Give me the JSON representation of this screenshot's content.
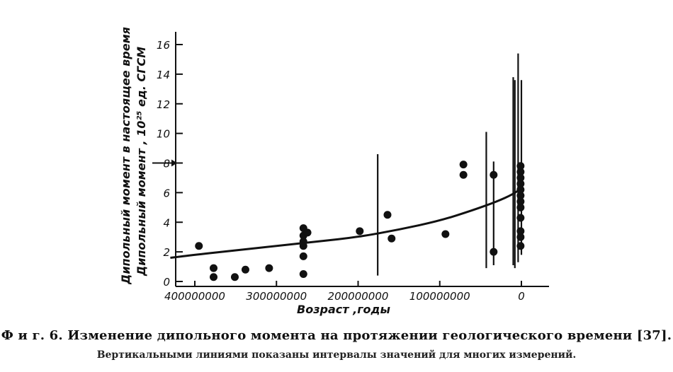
{
  "caption": {
    "main": "Ф и г. 6. Изменение дипольного момента на протяжении геологического времени [37].",
    "sub": "Вертикальными линиями показаны интервалы значений для многих измерений."
  },
  "chart_data": {
    "type": "scatter",
    "xlabel": "Возраст ,годы",
    "ylabel_line1": "Дипольный момент в настоящее время",
    "ylabel_line2": "Дипольный момент , 10²⁵ ед. СГСМ",
    "x_reversed": true,
    "xlim": [
      0,
      430000000
    ],
    "ylim": [
      0,
      17
    ],
    "x_ticks": [
      400000000,
      300000000,
      200000000,
      100000000,
      0
    ],
    "x_tick_labels": [
      "400000000",
      "300000000",
      "200000000",
      "100000000",
      "0"
    ],
    "y_ticks": [
      0,
      2,
      4,
      6,
      8,
      10,
      12,
      14,
      16
    ],
    "y_tick_labels": [
      "0",
      "2",
      "4",
      "6",
      "8",
      "10",
      "12",
      "14",
      "16"
    ],
    "present_marker_y": 8,
    "points": [
      {
        "x": 395000000,
        "y": 2.4
      },
      {
        "x": 377000000,
        "y": 0.9
      },
      {
        "x": 377000000,
        "y": 0.3
      },
      {
        "x": 351000000,
        "y": 0.3
      },
      {
        "x": 338000000,
        "y": 0.8
      },
      {
        "x": 309000000,
        "y": 0.9
      },
      {
        "x": 267000000,
        "y": 3.6
      },
      {
        "x": 267000000,
        "y": 3.1
      },
      {
        "x": 267000000,
        "y": 2.7
      },
      {
        "x": 267000000,
        "y": 2.4
      },
      {
        "x": 267000000,
        "y": 1.7
      },
      {
        "x": 267000000,
        "y": 0.5
      },
      {
        "x": 262000000,
        "y": 3.3
      },
      {
        "x": 198000000,
        "y": 3.4
      },
      {
        "x": 164000000,
        "y": 4.5
      },
      {
        "x": 159000000,
        "y": 2.9
      },
      {
        "x": 93000000,
        "y": 3.2
      },
      {
        "x": 71000000,
        "y": 7.9
      },
      {
        "x": 71000000,
        "y": 7.2
      },
      {
        "x": 34000000,
        "y": 7.2
      },
      {
        "x": 34000000,
        "y": 2.0
      },
      {
        "x": 1000000,
        "y": 7.8
      },
      {
        "x": 1000000,
        "y": 7.4
      },
      {
        "x": 1000000,
        "y": 7.0
      },
      {
        "x": 1000000,
        "y": 6.6
      },
      {
        "x": 1000000,
        "y": 6.2
      },
      {
        "x": 1000000,
        "y": 5.8
      },
      {
        "x": 1000000,
        "y": 5.4
      },
      {
        "x": 1000000,
        "y": 5.0
      },
      {
        "x": 1000000,
        "y": 4.3
      },
      {
        "x": 1000000,
        "y": 3.4
      },
      {
        "x": 1000000,
        "y": 3.0
      },
      {
        "x": 1000000,
        "y": 2.4
      }
    ],
    "ranges": [
      {
        "x": 176000000,
        "y_low": 0.4,
        "y_high": 8.6
      },
      {
        "x": 43000000,
        "y_low": 0.9,
        "y_high": 10.1
      },
      {
        "x": 34000000,
        "y_low": 1.1,
        "y_high": 8.1
      },
      {
        "x": 10000000,
        "y_low": 1.1,
        "y_high": 13.8
      },
      {
        "x": 8000000,
        "y_low": 0.9,
        "y_high": 13.6
      },
      {
        "x": 4000000,
        "y_low": 1.3,
        "y_high": 15.4
      },
      {
        "x": 0,
        "y_low": 1.8,
        "y_high": 13.6
      }
    ],
    "trend_curve": [
      {
        "x": 430000000,
        "y": 1.6
      },
      {
        "x": 400000000,
        "y": 1.8
      },
      {
        "x": 350000000,
        "y": 2.1
      },
      {
        "x": 300000000,
        "y": 2.4
      },
      {
        "x": 250000000,
        "y": 2.7
      },
      {
        "x": 200000000,
        "y": 3.0
      },
      {
        "x": 150000000,
        "y": 3.5
      },
      {
        "x": 100000000,
        "y": 4.1
      },
      {
        "x": 60000000,
        "y": 4.8
      },
      {
        "x": 30000000,
        "y": 5.4
      },
      {
        "x": 10000000,
        "y": 5.9
      },
      {
        "x": 0,
        "y": 6.3
      }
    ]
  }
}
